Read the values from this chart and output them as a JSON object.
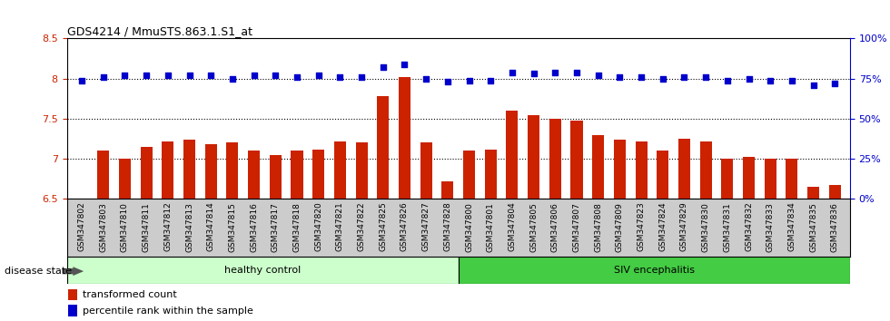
{
  "title": "GDS4214 / MmuSTS.863.1.S1_at",
  "samples": [
    "GSM347802",
    "GSM347803",
    "GSM347810",
    "GSM347811",
    "GSM347812",
    "GSM347813",
    "GSM347814",
    "GSM347815",
    "GSM347816",
    "GSM347817",
    "GSM347818",
    "GSM347820",
    "GSM347821",
    "GSM347822",
    "GSM347825",
    "GSM347826",
    "GSM347827",
    "GSM347828",
    "GSM347800",
    "GSM347801",
    "GSM347804",
    "GSM347805",
    "GSM347806",
    "GSM347807",
    "GSM347808",
    "GSM347809",
    "GSM347823",
    "GSM347824",
    "GSM347829",
    "GSM347830",
    "GSM347831",
    "GSM347832",
    "GSM347833",
    "GSM347834",
    "GSM347835",
    "GSM347836"
  ],
  "bar_values": [
    6.5,
    7.1,
    7.0,
    7.15,
    7.22,
    7.24,
    7.18,
    7.21,
    7.1,
    7.05,
    7.1,
    7.12,
    7.22,
    7.21,
    7.78,
    8.02,
    7.21,
    6.72,
    7.1,
    7.12,
    7.6,
    7.55,
    7.5,
    7.48,
    7.3,
    7.24,
    7.22,
    7.1,
    7.25,
    7.22,
    7.0,
    7.02,
    7.0,
    7.0,
    6.65,
    6.68
  ],
  "percentile_values": [
    74,
    76,
    77,
    77,
    77,
    77,
    77,
    75,
    77,
    77,
    76,
    77,
    76,
    76,
    82,
    84,
    75,
    73,
    74,
    74,
    79,
    78,
    79,
    79,
    77,
    76,
    76,
    75,
    76,
    76,
    74,
    75,
    74,
    74,
    71,
    72
  ],
  "bar_color": "#CC2200",
  "percentile_color": "#0000CC",
  "healthy_count": 18,
  "healthy_label": "healthy control",
  "siv_label": "SIV encephalitis",
  "healthy_color": "#CCFFCC",
  "siv_color": "#44CC44",
  "disease_state_label": "disease state",
  "legend_bar_label": "transformed count",
  "legend_pct_label": "percentile rank within the sample",
  "ylim_left": [
    6.5,
    8.5
  ],
  "ylim_right": [
    0,
    100
  ],
  "yticks_left": [
    6.5,
    7.0,
    7.5,
    8.0,
    8.5
  ],
  "ytick_labels_left": [
    "6.5",
    "7",
    "7.5",
    "8",
    "8.5"
  ],
  "yticks_right": [
    0,
    25,
    50,
    75,
    100
  ],
  "ytick_labels_right": [
    "0%",
    "25%",
    "50%",
    "75%",
    "100%"
  ],
  "hlines": [
    7.0,
    7.5,
    8.0
  ],
  "xtick_bg_color": "#CCCCCC",
  "plot_bg_color": "#FFFFFF"
}
